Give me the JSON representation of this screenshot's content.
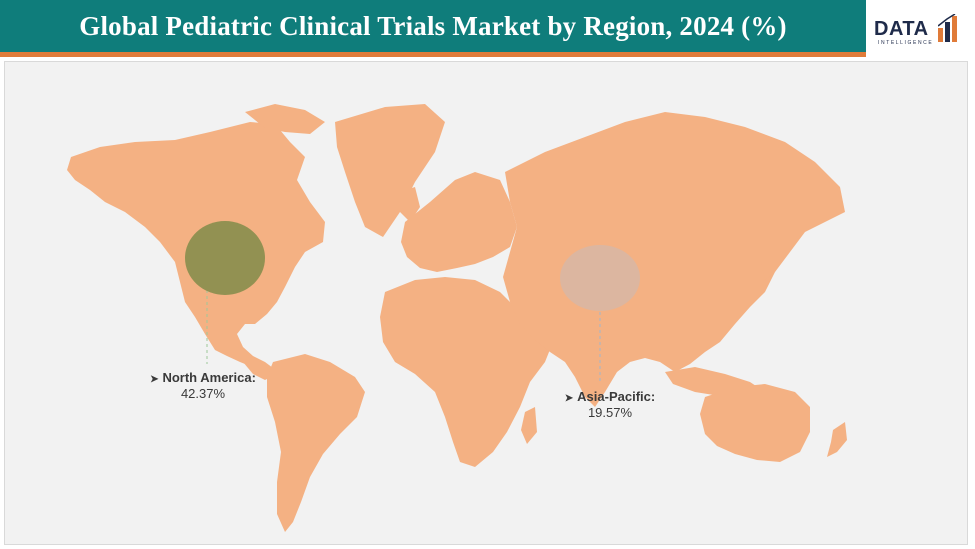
{
  "header": {
    "title": "Global Pediatric Clinical Trials Market by Region, 2024 (%)"
  },
  "logo": {
    "text": "DATA",
    "subtext": "INTELLIGENCE"
  },
  "colors": {
    "header_bg": "#0f7d7b",
    "header_rule": "#e07b39",
    "land": "#f4b183",
    "north_america_bubble": "#8c8f4f",
    "asia_pacific_bubble": "#d9b7a3"
  },
  "regions": [
    {
      "name": "North America:",
      "value": "42.37%"
    },
    {
      "name": "Asia-Pacific:",
      "value": "19.57%"
    }
  ]
}
